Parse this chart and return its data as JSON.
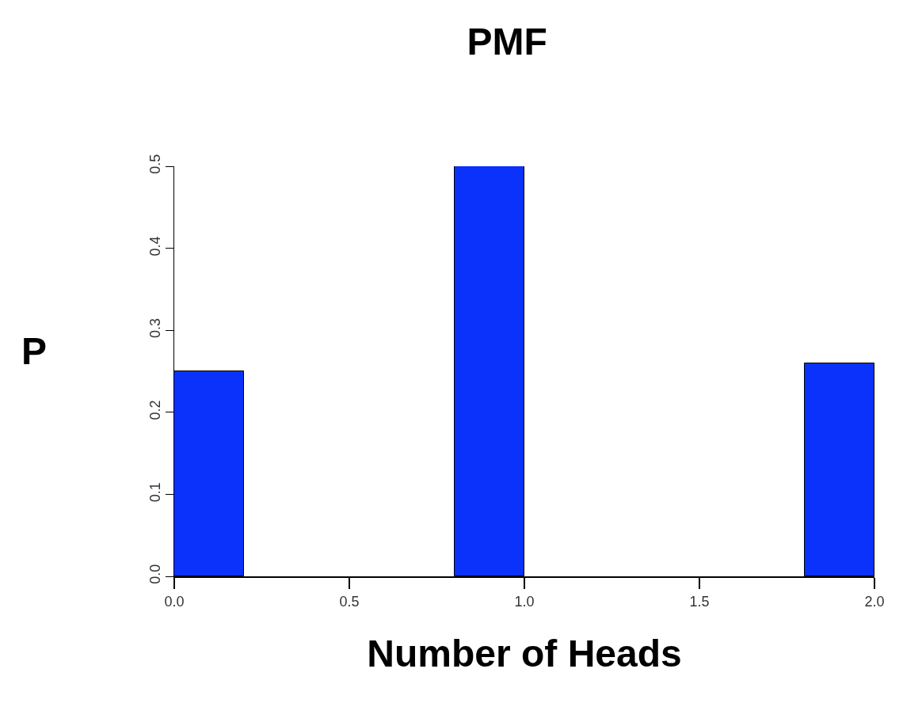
{
  "chart_data": {
    "type": "histogram",
    "title": "PMF",
    "xlabel": "Number of Heads",
    "ylabel": "P",
    "bins": [
      0,
      0.2,
      0.4,
      0.6,
      0.8,
      1.0,
      1.2,
      1.4,
      1.6,
      1.8,
      2.0
    ],
    "values": [
      0.25,
      0,
      0,
      0,
      0.5,
      0,
      0,
      0,
      0,
      0.26
    ],
    "color": "#0a32fa",
    "xlim": [
      0,
      2
    ],
    "xticks": [
      {
        "value": 0,
        "label": "0.0"
      },
      {
        "value": 0.5,
        "label": "0.5"
      },
      {
        "value": 1,
        "label": "1.0"
      },
      {
        "value": 1.5,
        "label": "1.5"
      },
      {
        "value": 2,
        "label": "2.0"
      }
    ],
    "ylim": [
      0,
      0.5
    ],
    "yticks": [
      {
        "value": 0,
        "label": "0.0"
      },
      {
        "value": 0.1,
        "label": "0.1"
      },
      {
        "value": 0.2,
        "label": "0.2"
      },
      {
        "value": 0.3,
        "label": "0.3"
      },
      {
        "value": 0.4,
        "label": "0.4"
      },
      {
        "value": 0.5,
        "label": "0.5"
      }
    ],
    "grid": false,
    "legend": false
  }
}
